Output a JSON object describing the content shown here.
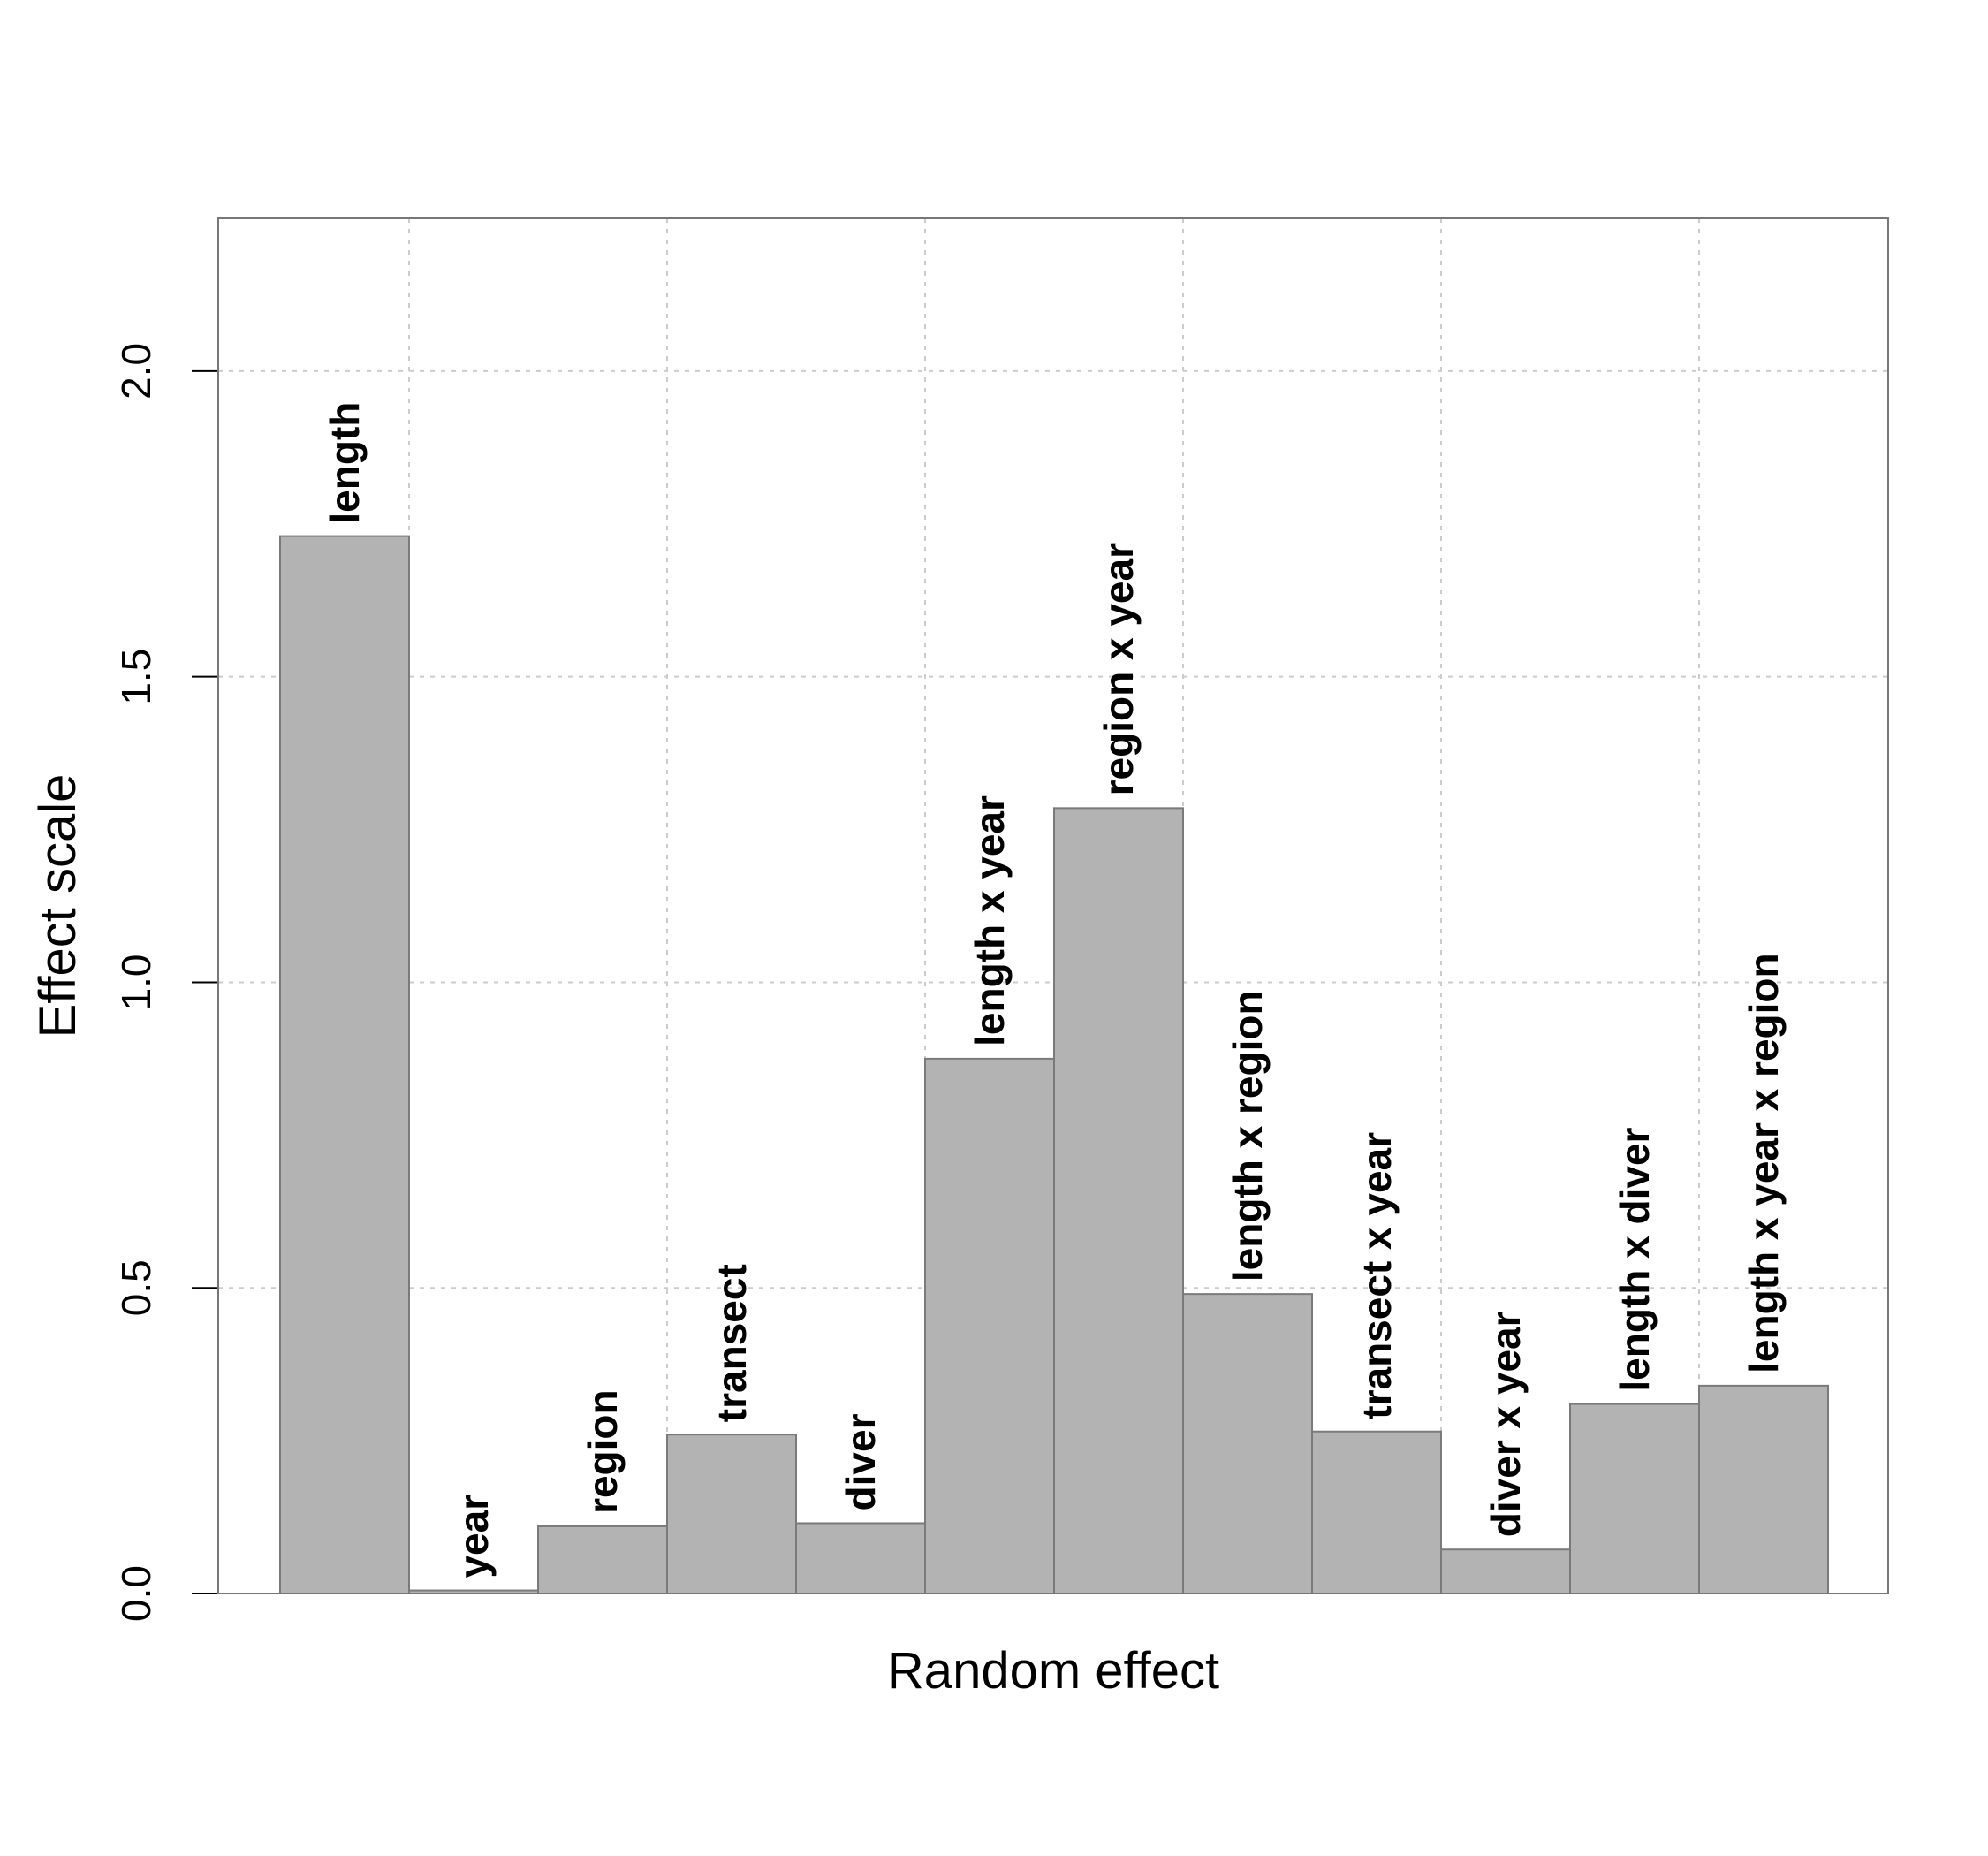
{
  "chart_data": {
    "type": "bar",
    "categories": [
      "length",
      "year",
      "region",
      "transect",
      "diver",
      "length x year",
      "region x year",
      "length x region",
      "transect x year",
      "diver x year",
      "length x diver",
      "length x year x region"
    ],
    "values": [
      1.73,
      0.005,
      0.11,
      0.26,
      0.115,
      0.875,
      1.285,
      0.49,
      0.265,
      0.072,
      0.31,
      0.34
    ],
    "xlabel": "Random effect",
    "ylabel": "Effect scale",
    "ylim": [
      0,
      2.25
    ],
    "yticks": [
      0,
      0.5,
      1,
      1.5,
      2
    ],
    "ytick_labels": [
      "0.0",
      "0.5",
      "1.0",
      "1.5",
      "2.0"
    ],
    "grid": true,
    "colors": {
      "bar_fill": "#b3b3b3",
      "bar_stroke": "#7a7a7a",
      "grid": "#cccccc",
      "frame": "#777777"
    }
  }
}
